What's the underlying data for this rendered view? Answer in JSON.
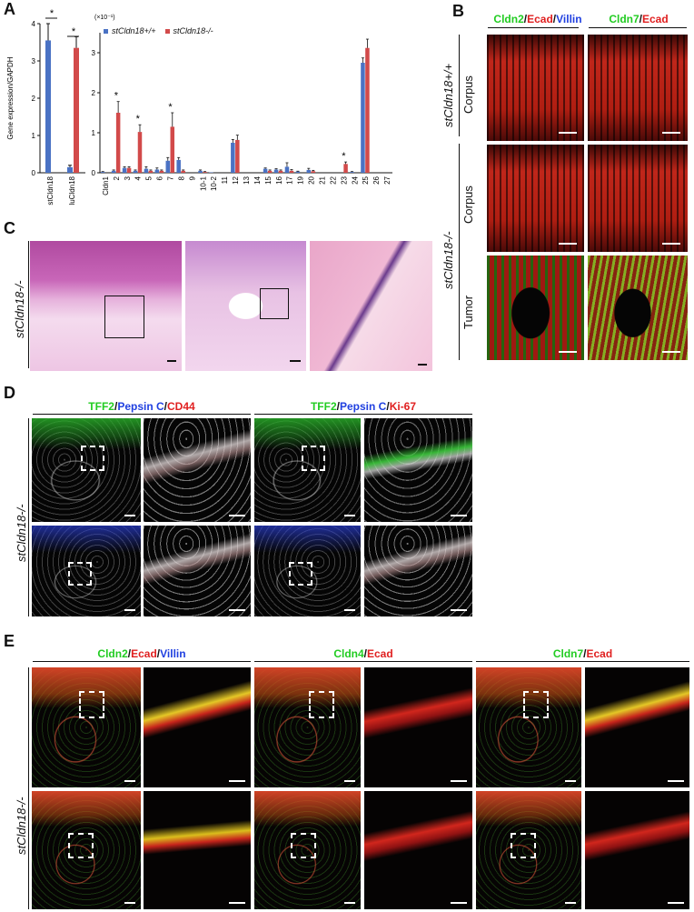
{
  "panel_labels": {
    "a": "A",
    "b": "B",
    "c": "C",
    "d": "D",
    "e": "E"
  },
  "chart_data": [
    {
      "type": "bar",
      "ylabel": "Gene expression/GAPDH",
      "ylim": [
        0,
        4
      ],
      "yticks": [
        "0",
        "1",
        "2",
        "3",
        "4"
      ],
      "categories": [
        "stCldn18",
        "luCldn18"
      ],
      "series": [
        {
          "name": "stCldn18+/+",
          "color": "#4a72c4",
          "values": [
            3.55,
            0.15
          ],
          "errors": [
            0.45,
            0.05
          ]
        },
        {
          "name": "stCldn18-/-",
          "color": "#d24a4a",
          "values": [
            0.0,
            3.35
          ],
          "errors": [
            0.0,
            0.3
          ]
        }
      ],
      "annotations": [
        "*",
        "*"
      ]
    },
    {
      "type": "bar",
      "scale_label": "(×10⁻¹)",
      "ylim": [
        0,
        3.5
      ],
      "yticks": [
        "0",
        "1",
        "2",
        "3"
      ],
      "categories": [
        "Cldn1",
        "2",
        "3",
        "4",
        "5",
        "6",
        "7",
        "8",
        "9",
        "10-1",
        "10-2",
        "11",
        "12",
        "13",
        "14",
        "15",
        "16",
        "17",
        "19",
        "20",
        "21",
        "22",
        "23",
        "24",
        "25",
        "26",
        "27"
      ],
      "series": [
        {
          "name": "stCldn18+/+",
          "color": "#4a72c4",
          "values": [
            0.02,
            0.05,
            0.12,
            0.05,
            0.1,
            0.08,
            0.3,
            0.32,
            0.0,
            0.05,
            0.01,
            0.0,
            0.75,
            0.0,
            0.0,
            0.1,
            0.08,
            0.15,
            0.03,
            0.07,
            0.0,
            0.0,
            0.0,
            0.02,
            2.75,
            0.0,
            0.0
          ],
          "errors": [
            0.01,
            0.02,
            0.03,
            0.02,
            0.05,
            0.04,
            0.08,
            0.06,
            0.0,
            0.02,
            0.0,
            0.0,
            0.08,
            0.0,
            0.0,
            0.02,
            0.02,
            0.1,
            0.01,
            0.04,
            0.0,
            0.0,
            0.0,
            0.01,
            0.12,
            0.0,
            0.0
          ]
        },
        {
          "name": "stCldn18-/-",
          "color": "#d24a4a",
          "values": [
            0.0,
            1.5,
            0.12,
            1.02,
            0.05,
            0.05,
            1.15,
            0.05,
            0.0,
            0.02,
            0.0,
            0.0,
            0.82,
            0.0,
            0.0,
            0.05,
            0.05,
            0.05,
            0.0,
            0.04,
            0.0,
            0.0,
            0.22,
            0.0,
            3.12,
            0.0,
            0.0
          ],
          "errors": [
            0.0,
            0.28,
            0.03,
            0.18,
            0.02,
            0.02,
            0.35,
            0.02,
            0.0,
            0.01,
            0.0,
            0.0,
            0.12,
            0.0,
            0.0,
            0.02,
            0.02,
            0.03,
            0.0,
            0.02,
            0.0,
            0.0,
            0.05,
            0.0,
            0.22,
            0.0,
            0.0
          ]
        }
      ],
      "significant_categories": [
        "2",
        "4",
        "7",
        "23"
      ],
      "annotation": "*"
    }
  ],
  "panel_b": {
    "col1": {
      "p1": "Cldn2",
      "p2": "Ecad",
      "p3": "Villin"
    },
    "col2": {
      "p1": "Cldn7",
      "p2": "Ecad"
    },
    "genotype_wt": "stCldn18+/+",
    "genotype_ko": "stCldn18-/-",
    "row_corpus": "Corpus",
    "row_tumor": "Tumor"
  },
  "panel_c": {
    "genotype": "stCldn18-/-"
  },
  "panel_d": {
    "left": {
      "p1": "TFF2",
      "p2": "Pepsin C",
      "p3": "CD44"
    },
    "right": {
      "p1": "TFF2",
      "p2": "Pepsin C",
      "p3": "Ki-67"
    },
    "genotype": "stCldn18-/-"
  },
  "panel_e": {
    "col1": {
      "p1": "Cldn2",
      "p2": "Ecad",
      "p3": "Villin"
    },
    "col2": {
      "p1": "Cldn4",
      "p2": "Ecad"
    },
    "col3": {
      "p1": "Cldn7",
      "p2": "Ecad"
    },
    "genotype": "stCldn18-/-"
  },
  "sep": "/"
}
